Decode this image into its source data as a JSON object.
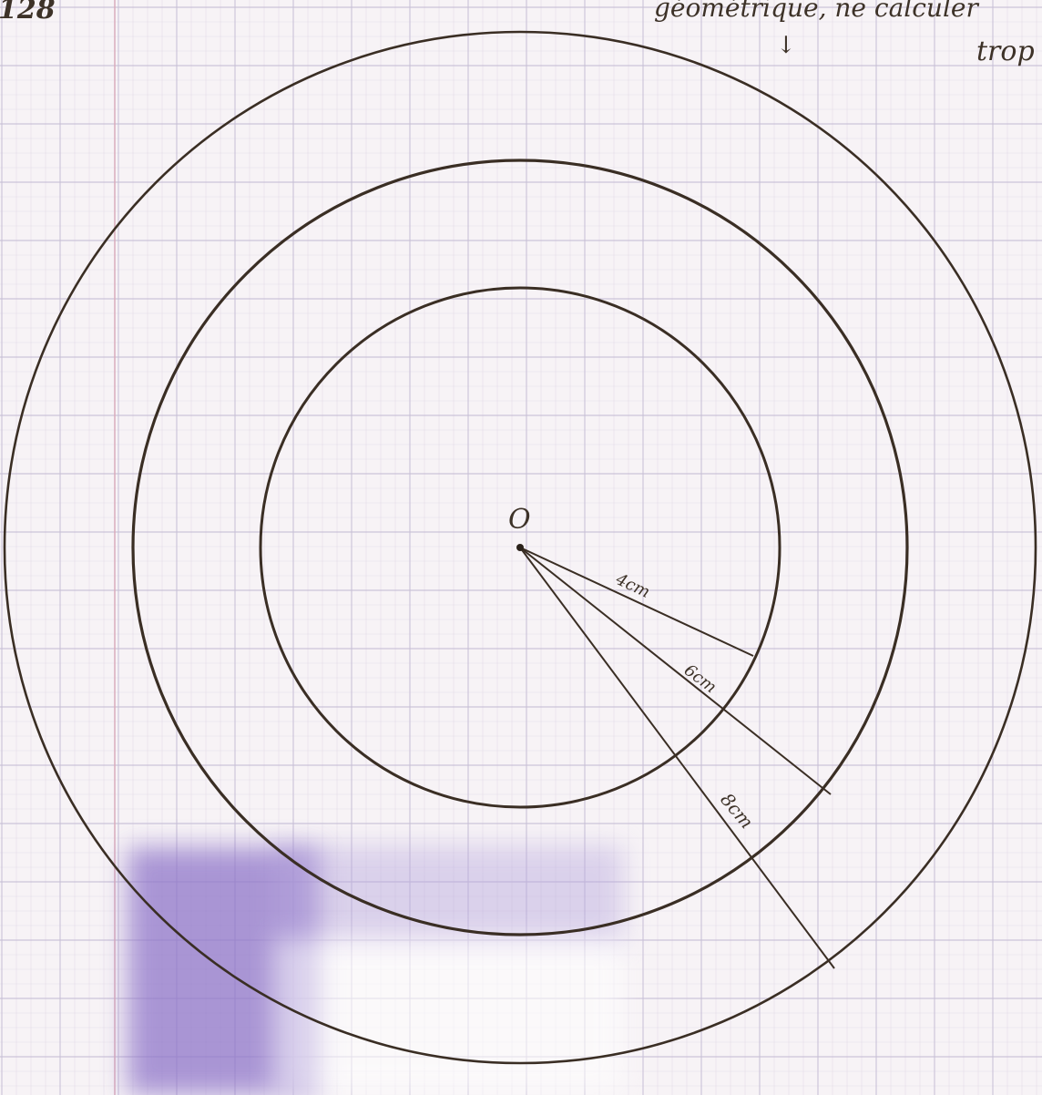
{
  "page": {
    "paper_color": "#f7f3f6",
    "grid_color": "#c7bfd6",
    "margin_line_color": "#d9a9b9",
    "ink_color": "#3a2e24",
    "shadow_color": "#8f76c9"
  },
  "notes": {
    "page_number": "128",
    "top_note": "géométrique, ne calculer",
    "arrow": "↓",
    "side_note": "trop"
  },
  "figure": {
    "center_label": "O",
    "radius_labels": {
      "inner": "4cm",
      "middle": "6cm",
      "outer": "8cm"
    }
  }
}
